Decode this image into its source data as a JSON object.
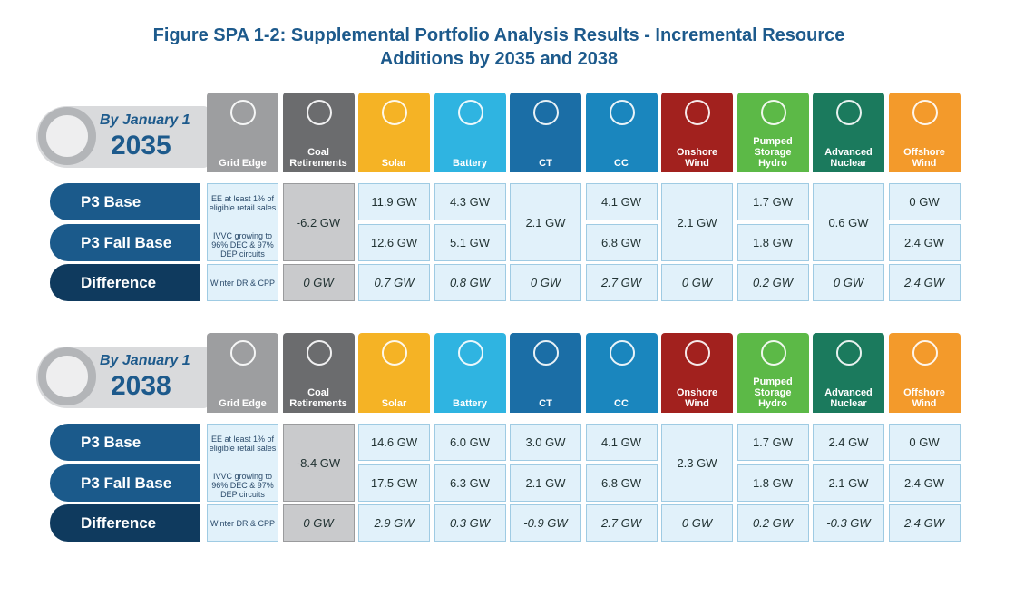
{
  "title": [
    "Figure SPA 1-2: Supplemental Portfolio Analysis Results - Incremental Resource",
    "Additions by 2035 and 2038"
  ],
  "columns": [
    "Grid Edge",
    "Coal Retirements",
    "Solar",
    "Battery",
    "CT",
    "CC",
    "Onshore Wind",
    "Pumped Storage Hydro",
    "Advanced Nuclear",
    "Offshore Wind"
  ],
  "row_labels": [
    "P3 Base",
    "P3 Fall Base",
    "Difference"
  ],
  "grid_edge_notes": [
    "EE at least 1% of eligible retail sales",
    "IVVC growing to 96% DEC & 97% DEP circuits",
    "Winter DR & CPP"
  ],
  "panels": [
    {
      "label": "By January 1",
      "year": "2035",
      "cells": [
        {
          "both": "-6.2 GW",
          "difference": "0 GW"
        },
        {
          "base": "11.9 GW",
          "fall_base": "12.6 GW",
          "difference": "0.7 GW"
        },
        {
          "base": "4.3 GW",
          "fall_base": "5.1 GW",
          "difference": "0.8 GW"
        },
        {
          "both": "2.1 GW",
          "difference": "0 GW"
        },
        {
          "base": "4.1 GW",
          "fall_base": "6.8 GW",
          "difference": "2.7 GW"
        },
        {
          "both": "2.1 GW",
          "difference": "0 GW"
        },
        {
          "base": "1.7 GW",
          "fall_base": "1.8 GW",
          "difference": "0.2 GW"
        },
        {
          "both": "0.6 GW",
          "difference": "0 GW"
        },
        {
          "base": "0 GW",
          "fall_base": "2.4 GW",
          "difference": "2.4 GW"
        }
      ]
    },
    {
      "label": "By January 1",
      "year": "2038",
      "cells": [
        {
          "both": "-8.4 GW",
          "difference": "0 GW"
        },
        {
          "base": "14.6 GW",
          "fall_base": "17.5 GW",
          "difference": "2.9 GW"
        },
        {
          "base": "6.0 GW",
          "fall_base": "6.3 GW",
          "difference": "0.3 GW"
        },
        {
          "base": "3.0 GW",
          "fall_base": "2.1 GW",
          "difference": "-0.9 GW"
        },
        {
          "base": "4.1 GW",
          "fall_base": "6.8 GW",
          "difference": "2.7 GW"
        },
        {
          "both": "2.3 GW",
          "difference": "0 GW"
        },
        {
          "base": "1.7 GW",
          "fall_base": "1.8 GW",
          "difference": "0.2 GW"
        },
        {
          "base": "2.4 GW",
          "fall_base": "2.1 GW",
          "difference": "-0.3 GW"
        },
        {
          "base": "0 GW",
          "fall_base": "2.4 GW",
          "difference": "2.4 GW"
        }
      ]
    }
  ]
}
